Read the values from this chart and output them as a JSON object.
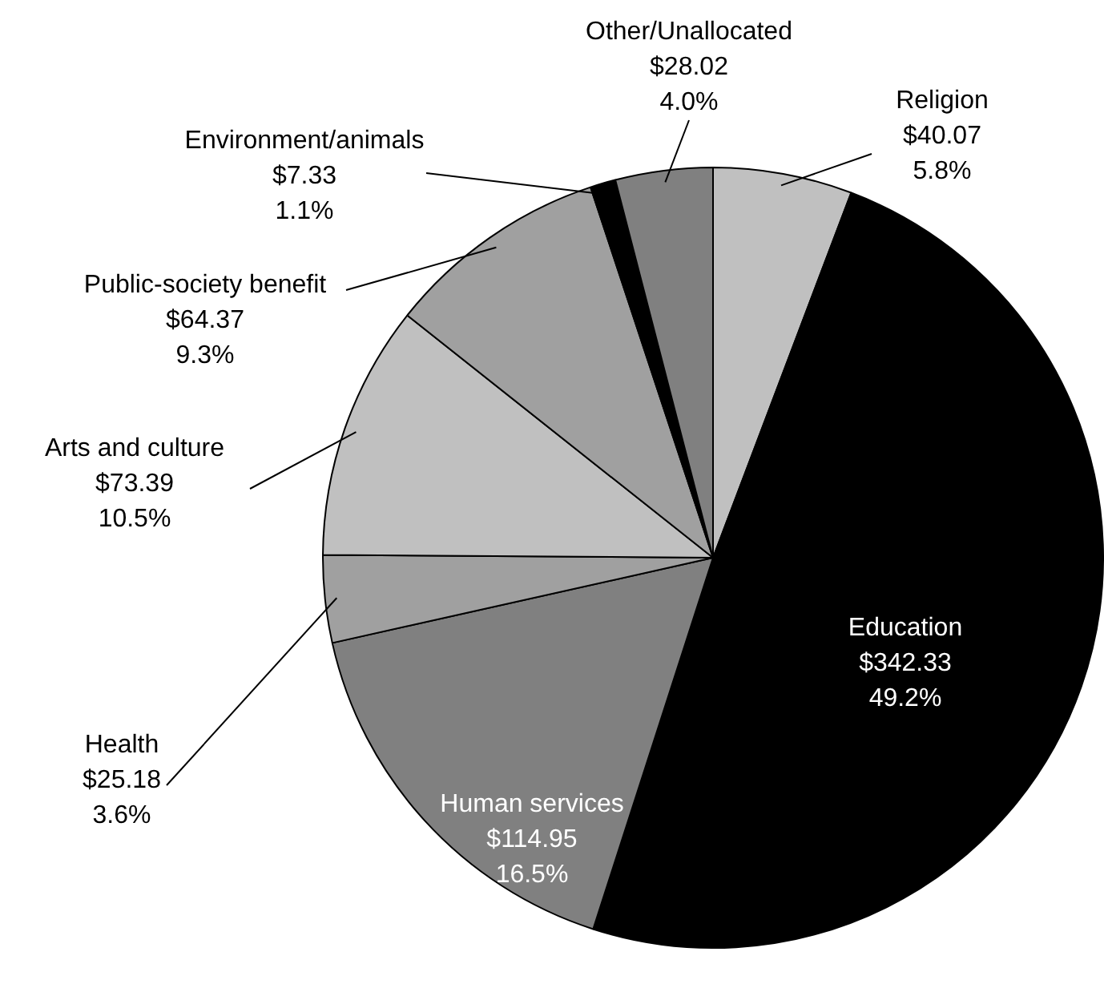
{
  "chart_data": {
    "type": "pie",
    "categories": [
      "Religion",
      "Education",
      "Human services",
      "Health",
      "Arts and culture",
      "Public-society benefit",
      "Environment/animals",
      "Other/Unallocated"
    ],
    "values": [
      40.07,
      342.33,
      114.95,
      25.18,
      73.39,
      64.37,
      7.33,
      28.02
    ],
    "colors": [
      "#c0c0c0",
      "#000000",
      "#808080",
      "#a0a0a0",
      "#c0c0c0",
      "#a0a0a0",
      "#000000",
      "#808080"
    ],
    "value_labels": [
      "$40.07\n5.8%",
      "$342.33\n49.2%",
      "$114.95\n16.5%",
      "$25.18\n3.6%",
      "$73.39\n10.5%",
      "$64.37\n9.3%",
      "$7.33\n1.1%",
      "$28.02\n4.0%"
    ]
  }
}
